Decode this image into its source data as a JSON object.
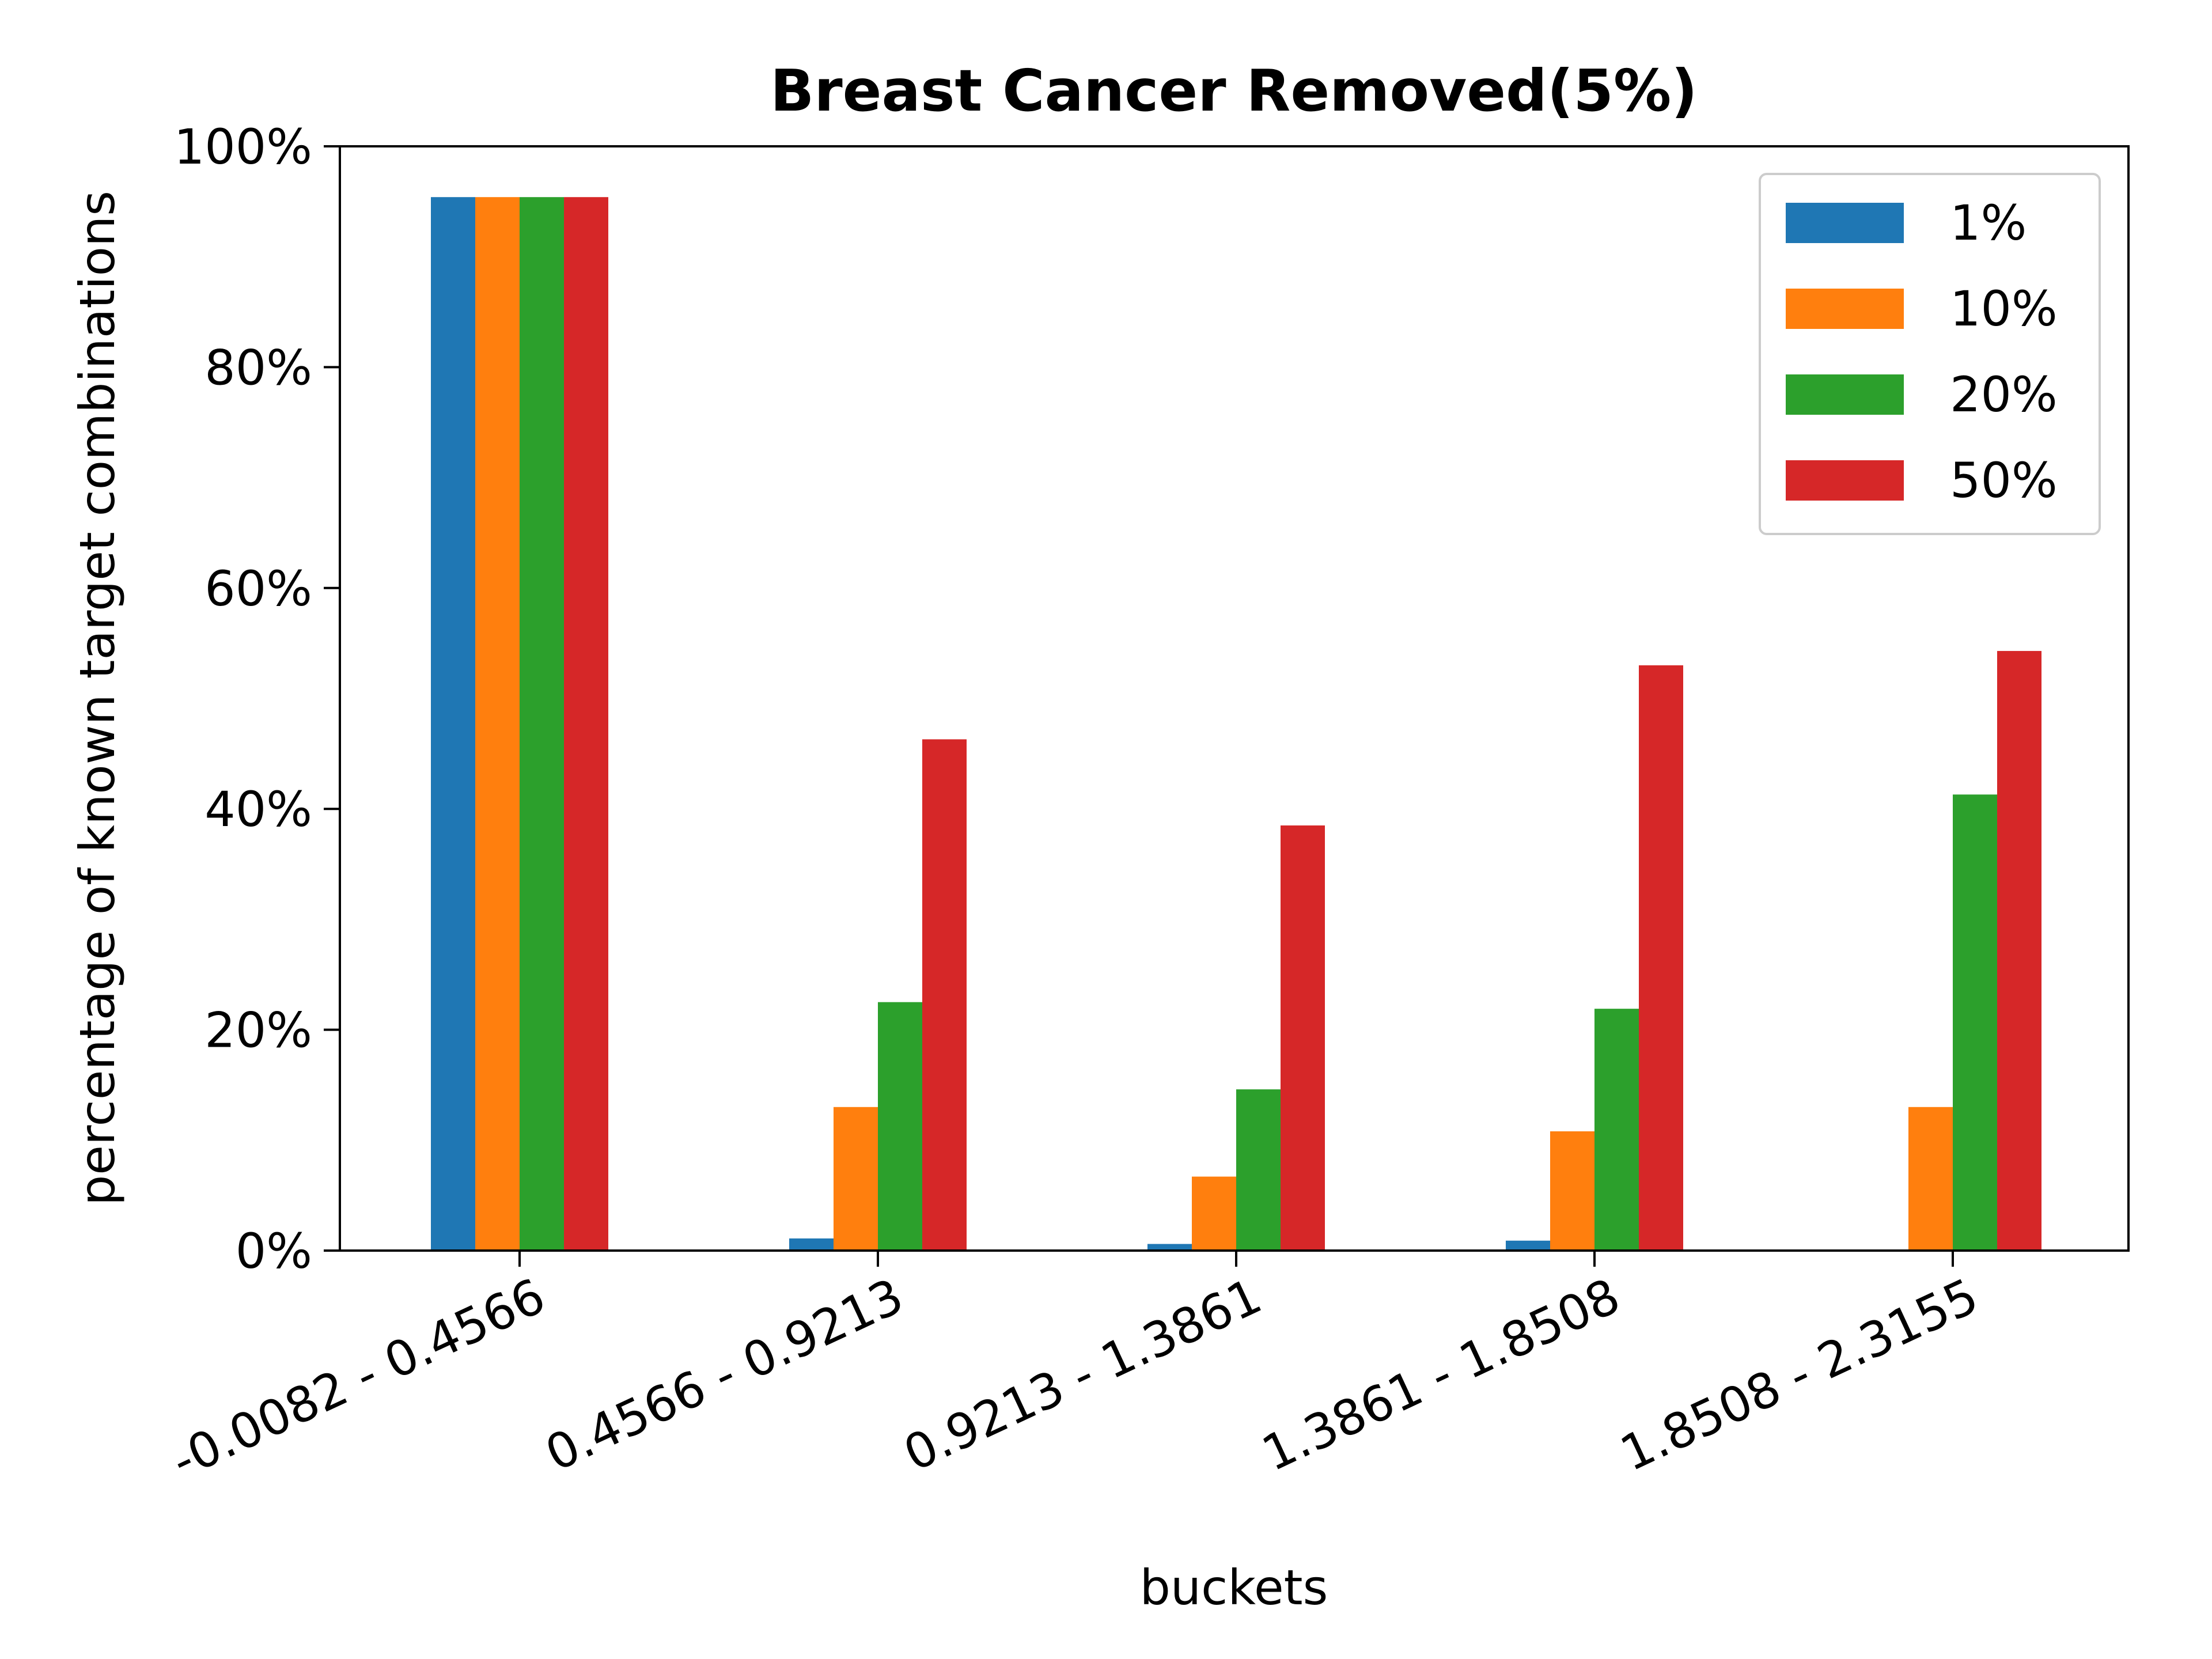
{
  "chart_data": {
    "type": "bar",
    "title": "Breast Cancer Removed(5%)",
    "xlabel": "buckets",
    "ylabel": "percentage of known target combinations",
    "categories": [
      "-0.0082 - 0.4566",
      "0.4566 - 0.9213",
      "0.9213 - 1.3861",
      "1.3861 - 1.8508",
      "1.8508 - 2.3155"
    ],
    "ylim": [
      0,
      100
    ],
    "yticks": [
      0,
      20,
      40,
      60,
      80,
      100
    ],
    "ytick_labels": [
      "0%",
      "20%",
      "40%",
      "60%",
      "80%",
      "100%"
    ],
    "grid": false,
    "legend_position": "top-right",
    "series": [
      {
        "name": "1%",
        "color": "#1f77b4",
        "values": [
          95.4,
          1.1,
          0.6,
          0.9,
          0.0
        ]
      },
      {
        "name": "10%",
        "color": "#ff7f0e",
        "values": [
          95.4,
          13.0,
          6.7,
          10.8,
          13.0
        ]
      },
      {
        "name": "20%",
        "color": "#2ca02c",
        "values": [
          95.4,
          22.5,
          14.6,
          21.9,
          41.3
        ]
      },
      {
        "name": "50%",
        "color": "#d62728",
        "values": [
          95.4,
          46.3,
          38.5,
          53.0,
          54.3
        ]
      }
    ]
  }
}
